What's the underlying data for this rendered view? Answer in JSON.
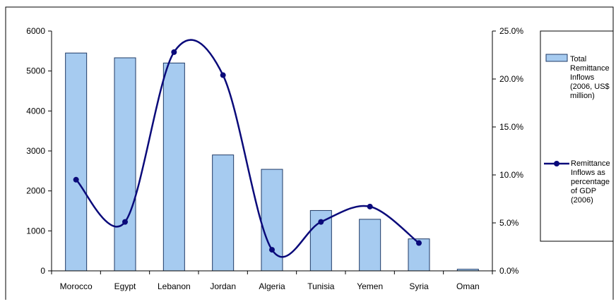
{
  "chart_data": {
    "type": "bar",
    "title": "",
    "categories": [
      "Morocco",
      "Egypt",
      "Lebanon",
      "Jordan",
      "Algeria",
      "Tunisia",
      "Yemen",
      "Syria",
      "Oman"
    ],
    "series": [
      {
        "name": "Total Remittance Inflows (2006, US$ million)",
        "legend_lines": [
          "Total",
          "Remittance",
          "Inflows",
          "(2006, US$",
          "million)"
        ],
        "kind": "bar",
        "axis": "left",
        "values": [
          5450,
          5330,
          5200,
          2900,
          2540,
          1510,
          1290,
          800,
          40
        ],
        "color": "#a6cbf0",
        "stroke": "#1f3a66"
      },
      {
        "name": "Remittance Inflows as percentage of GDP (2006)",
        "legend_lines": [
          "Remittance",
          "Inflows as",
          "percentage",
          "of GDP",
          "(2006)"
        ],
        "kind": "line",
        "axis": "right",
        "values": [
          9.5,
          5.1,
          22.8,
          20.4,
          2.2,
          5.1,
          6.7,
          2.9,
          null
        ],
        "color": "#0a0a7a"
      }
    ],
    "y_left": {
      "min": 0,
      "max": 6000,
      "ticks": [
        0,
        1000,
        2000,
        3000,
        4000,
        5000,
        6000
      ],
      "tick_labels": [
        "0",
        "1000",
        "2000",
        "3000",
        "4000",
        "5000",
        "6000"
      ]
    },
    "y_right": {
      "min": 0,
      "max": 25,
      "ticks": [
        0,
        5,
        10,
        15,
        20,
        25
      ],
      "tick_labels": [
        "0.0%",
        "5.0%",
        "10.0%",
        "15.0%",
        "20.0%",
        "25.0%"
      ]
    },
    "grid": false,
    "legend_position": "right"
  }
}
